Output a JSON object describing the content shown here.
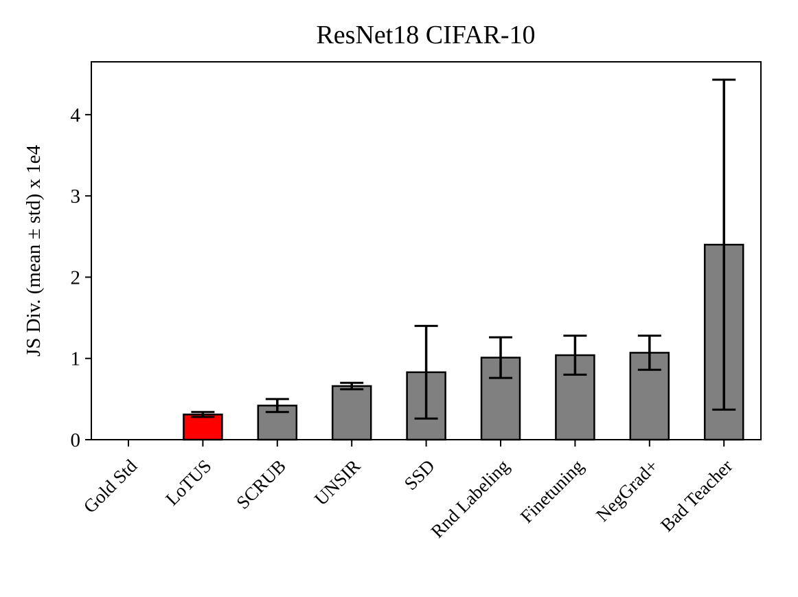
{
  "chart_data": {
    "type": "bar",
    "title": "ResNet18 CIFAR-10",
    "xlabel": "",
    "ylabel": "JS Div. (mean ± std) x 1e4",
    "ylim": [
      0,
      4.65
    ],
    "yticks": [
      0,
      1,
      2,
      3,
      4
    ],
    "ytick_labels": [
      "0",
      "1",
      "2",
      "3",
      "4"
    ],
    "categories": [
      "Gold Std",
      "LoTUS",
      "SCRUB",
      "UNSIR",
      "SSD",
      "Rnd Labeling",
      "Finetuning",
      "NegGrad+",
      "Bad Teacher"
    ],
    "values": [
      0.0,
      0.31,
      0.42,
      0.66,
      0.83,
      1.01,
      1.04,
      1.07,
      2.4
    ],
    "errors": [
      0.0,
      0.03,
      0.08,
      0.04,
      0.57,
      0.25,
      0.24,
      0.21,
      2.03
    ],
    "colors": [
      "#808080",
      "#ff0000",
      "#808080",
      "#808080",
      "#808080",
      "#808080",
      "#808080",
      "#808080",
      "#808080"
    ],
    "grid": false,
    "legend": "none"
  }
}
